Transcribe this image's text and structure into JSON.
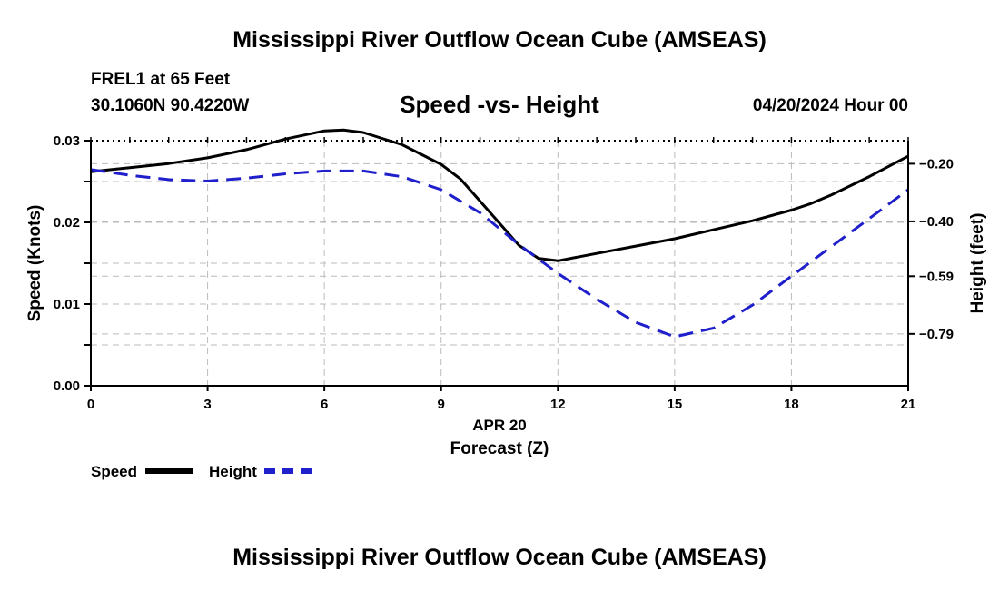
{
  "header": {
    "title": "Mississippi River Outflow Ocean Cube (AMSEAS)",
    "station": "FREL1 at 65 Feet",
    "coordinates": "30.1060N  90.4220W",
    "chart_title": "Speed -vs- Height",
    "date": "04/20/2024 Hour 00"
  },
  "footer": {
    "title": "Mississippi River Outflow Ocean Cube (AMSEAS)"
  },
  "legend": {
    "speed_label": "Speed",
    "height_label": "Height"
  },
  "colors": {
    "speed": "#000000",
    "height": "#1f1fcc",
    "grid": "#bbbbbb"
  },
  "chart_data": {
    "type": "line",
    "title": "Speed -vs- Height",
    "xlabel": "Forecast (Z)",
    "xlabel_date": "APR 20",
    "ylabel_left": "Speed (Knots)",
    "ylabel_right": "Height (feet)",
    "xlim": [
      0,
      21
    ],
    "x_ticks": [
      0,
      3,
      6,
      9,
      12,
      15,
      18,
      21
    ],
    "x_tick_labels": [
      "0",
      "3",
      "6",
      "9",
      "12",
      "15",
      "18",
      "21"
    ],
    "ylim_left": [
      0,
      0.03
    ],
    "y_left_ticks": [
      0,
      0.005,
      0.01,
      0.015,
      0.02,
      0.025,
      0.03
    ],
    "y_left_tick_labels": [
      "0.00",
      "",
      "0.01",
      "",
      "0.02",
      "",
      "0.03"
    ],
    "ylim_right": [
      -0.97,
      -0.12
    ],
    "y_right_ticks": [
      -0.2,
      -0.4,
      -0.59,
      -0.79
    ],
    "y_right_tick_labels": [
      "−0.20",
      "−0.40",
      "−0.59",
      "−0.79"
    ],
    "grid": true,
    "series": [
      {
        "name": "Speed",
        "axis": "left",
        "style": "solid",
        "x": [
          0,
          1,
          2,
          3,
          4,
          5,
          6,
          6.5,
          7,
          8,
          9,
          9.5,
          10,
          11,
          11.5,
          12,
          13,
          14,
          15,
          16,
          17,
          18,
          18.5,
          19,
          20,
          21
        ],
        "y": [
          0.0262,
          0.0267,
          0.0272,
          0.0279,
          0.0289,
          0.0302,
          0.0312,
          0.0313,
          0.031,
          0.0295,
          0.0271,
          0.0253,
          0.0226,
          0.0172,
          0.0156,
          0.0153,
          0.0162,
          0.0171,
          0.018,
          0.0191,
          0.0202,
          0.0215,
          0.0223,
          0.0233,
          0.0256,
          0.0281
        ]
      },
      {
        "name": "Height",
        "axis": "right",
        "style": "dashed",
        "x": [
          0,
          1,
          2,
          3,
          4,
          5,
          6,
          6.5,
          7,
          8,
          9,
          10,
          11,
          12,
          13,
          14,
          15,
          16,
          17,
          18,
          19,
          20,
          21
        ],
        "y": [
          -0.22,
          -0.24,
          -0.255,
          -0.26,
          -0.25,
          -0.235,
          -0.225,
          -0.225,
          -0.225,
          -0.245,
          -0.29,
          -0.37,
          -0.48,
          -0.58,
          -0.67,
          -0.75,
          -0.8,
          -0.77,
          -0.69,
          -0.59,
          -0.49,
          -0.39,
          -0.29
        ]
      }
    ]
  }
}
